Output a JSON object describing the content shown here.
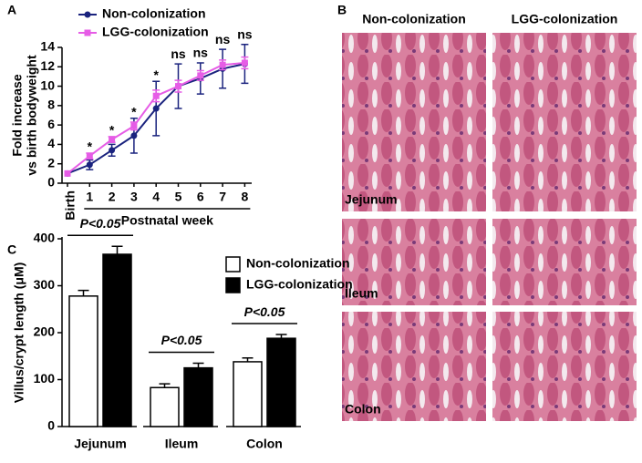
{
  "panels": {
    "a": "A",
    "b": "B",
    "c": "C"
  },
  "chart_data": [
    {
      "type": "line",
      "ylabel": [
        "Fold  increase",
        "vs birth bodyweight"
      ],
      "xlabel": "Postnatal week",
      "categories": [
        "Birth",
        "1",
        "2",
        "3",
        "4",
        "5",
        "6",
        "7",
        "8"
      ],
      "series": [
        {
          "name": "Non-colonization",
          "color": "#1a237e",
          "values": [
            1,
            1.9,
            3.4,
            4.9,
            7.7,
            10.0,
            10.8,
            11.8,
            12.3
          ],
          "errors": [
            0,
            0.5,
            0.6,
            1.8,
            2.8,
            2.3,
            1.6,
            2.0,
            2.0
          ]
        },
        {
          "name": "LGG-colonization",
          "color": "#e65ce6",
          "values": [
            1,
            2.8,
            4.5,
            5.9,
            9.0,
            10.0,
            11.1,
            12.2,
            12.4
          ],
          "errors": [
            0,
            0.3,
            0.3,
            0.4,
            0.6,
            0.6,
            0.5,
            0.5,
            0.6
          ]
        }
      ],
      "annotations": [
        null,
        "*",
        "*",
        "*",
        "*",
        "ns",
        "ns",
        "ns",
        "ns"
      ],
      "ylim": [
        0,
        14
      ],
      "yticks": [
        0,
        2,
        4,
        6,
        8,
        10,
        12,
        14
      ]
    },
    {
      "type": "bar",
      "ylabel": "Villus/crypt length (μM)",
      "categories": [
        "Jejunum",
        "Ileum",
        "Colon"
      ],
      "series": [
        {
          "name": "Non-colonization",
          "color": "#ffffff",
          "values": [
            278,
            83,
            138
          ],
          "errors": [
            12,
            8,
            8
          ]
        },
        {
          "name": "LGG-colonization",
          "color": "#000000",
          "values": [
            367,
            125,
            188
          ],
          "errors": [
            17,
            10,
            8
          ]
        }
      ],
      "annotations": [
        "P<0.05",
        "P<0.05",
        "P<0.05"
      ],
      "ylim": [
        0,
        400
      ],
      "yticks": [
        0,
        100,
        200,
        300,
        400
      ]
    }
  ],
  "histology": {
    "columns": [
      "Non-colonization",
      "LGG-colonization"
    ],
    "rows": [
      "Jejunum",
      "Ileum",
      "Colon"
    ]
  }
}
